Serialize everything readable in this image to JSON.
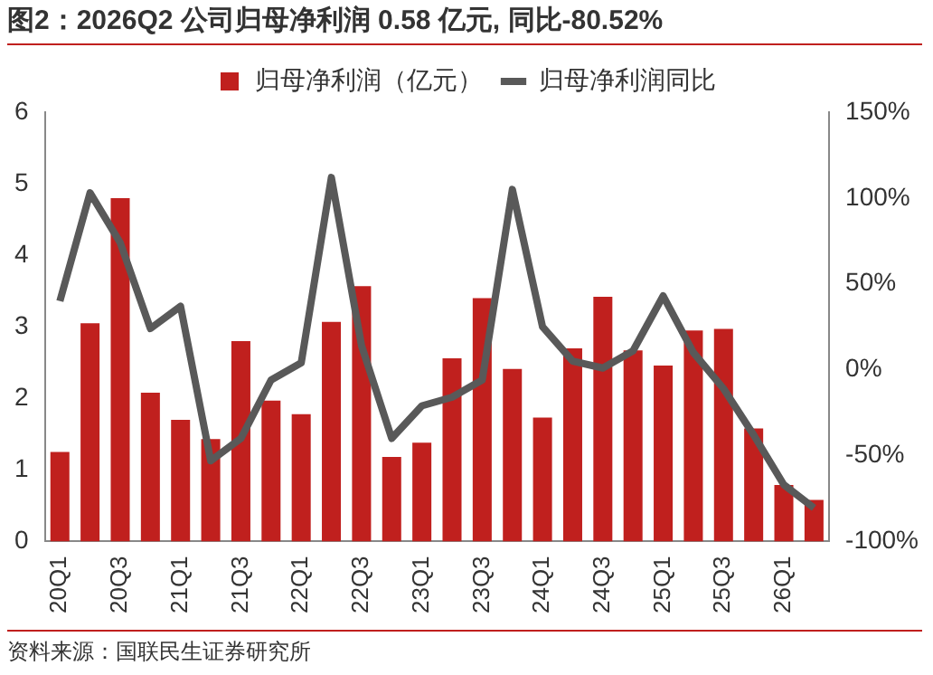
{
  "chart_data": {
    "type": "bar",
    "title": "图2：2026Q2 公司归母净利润 0.58 亿元, 同比-80.52%",
    "categories": [
      "20Q1",
      null,
      "20Q3",
      null,
      "21Q1",
      null,
      "21Q3",
      null,
      "22Q1",
      null,
      "22Q3",
      null,
      "23Q1",
      null,
      "23Q3",
      null,
      "24Q1",
      null,
      "24Q3",
      null,
      "25Q1",
      null,
      "25Q3",
      null,
      "26Q1",
      null
    ],
    "series": [
      {
        "name": "归母净利润（亿元）",
        "color": "#c0201e",
        "values": [
          1.25,
          3.05,
          4.8,
          2.08,
          1.7,
          1.43,
          2.8,
          1.97,
          1.78,
          3.07,
          3.57,
          1.18,
          1.38,
          2.56,
          3.4,
          2.41,
          1.73,
          2.7,
          3.42,
          2.67,
          2.46,
          2.95,
          2.97,
          1.58,
          0.79,
          0.58
        ]
      },
      {
        "name": "归母净利润同比",
        "type": "line",
        "axis": "y2",
        "color": "#595959",
        "values": [
          40,
          103,
          74,
          24,
          37,
          -53,
          -40,
          -6,
          4,
          112,
          14,
          -40,
          -21,
          -16,
          -6,
          105,
          25,
          5,
          1,
          11,
          43,
          10,
          -11,
          -38,
          -67,
          -80.52
        ]
      }
    ],
    "ylim": [
      0,
      6
    ],
    "yticks": [
      0,
      1,
      2,
      3,
      4,
      5,
      6
    ],
    "y2lim": [
      -100,
      150
    ],
    "y2ticks": [
      {
        "value": -100,
        "label": "-100%"
      },
      {
        "value": -50,
        "label": "-50%"
      },
      {
        "value": 0,
        "label": "0%"
      },
      {
        "value": 50,
        "label": "50%"
      },
      {
        "value": 100,
        "label": "100%"
      },
      {
        "value": 150,
        "label": "150%"
      }
    ],
    "grid": false,
    "legend": "top",
    "marker": "none",
    "annotations": [
      "资料来源：国联民生证券研究所"
    ]
  }
}
